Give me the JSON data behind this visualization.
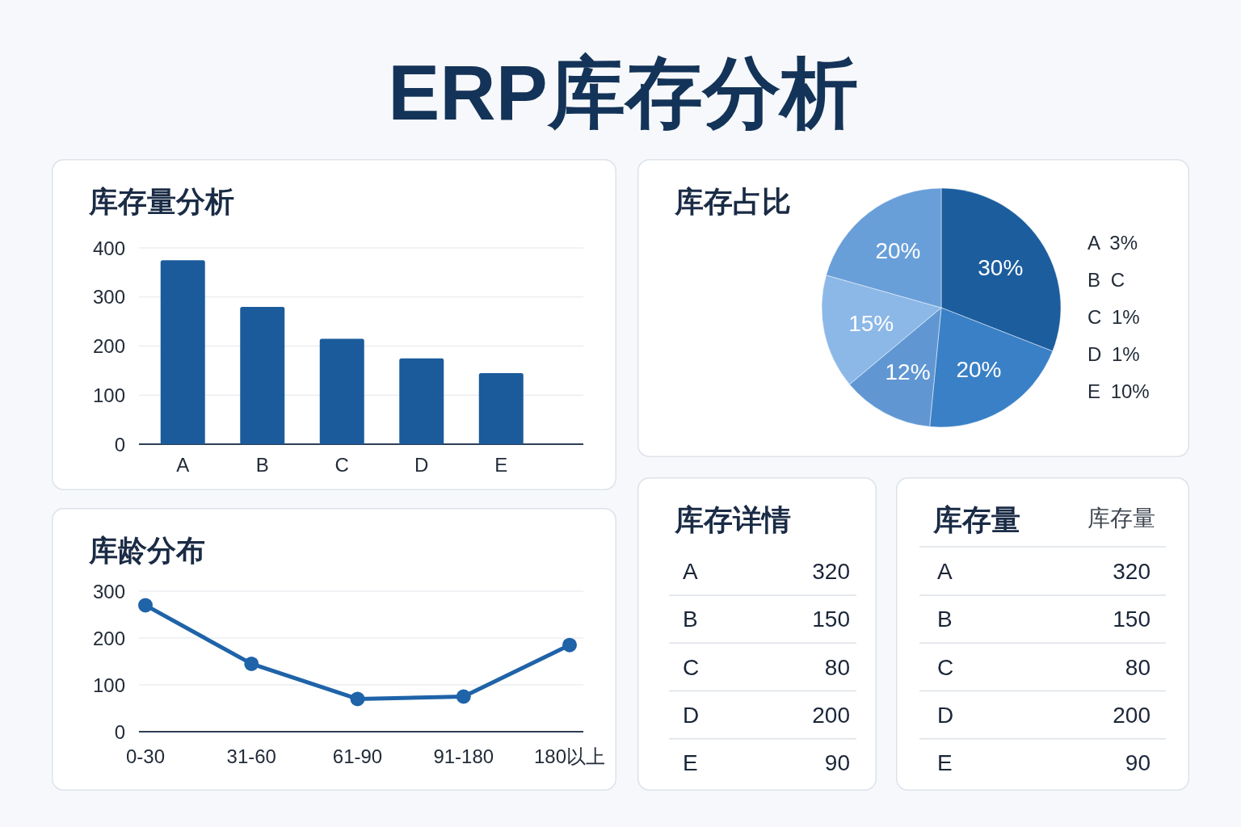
{
  "chart_data": [
    {
      "type": "other",
      "title": "ERP库存分析"
    },
    {
      "type": "bar",
      "title": "库存量分析",
      "categories": [
        "A",
        "B",
        "C",
        "D",
        "E"
      ],
      "values": [
        375,
        280,
        215,
        175,
        145
      ],
      "color": "#1b5b9c",
      "ylim": [
        0,
        400
      ],
      "yticks": [
        0,
        100,
        200,
        300,
        400
      ],
      "grid": "y"
    },
    {
      "type": "pie",
      "title": "库存占比",
      "categories": [
        null,
        null,
        null,
        null,
        null
      ],
      "values": [
        30,
        20,
        12,
        15,
        20
      ],
      "colors": [
        "#1c5d9e",
        "#3a80c6",
        "#6097d3",
        "#8cb8e7",
        "#699fd9"
      ],
      "value_labels": [
        "30%",
        "20%",
        "12%",
        "15%",
        "20%"
      ],
      "annotations": [
        "A 3%",
        "B C",
        "C 1%",
        "D 1%",
        "E 10%"
      ]
    },
    {
      "type": "line",
      "title": "库龄分布",
      "categories": [
        "0-30",
        "31-60",
        "61-90",
        "91-180",
        "180以上"
      ],
      "values": [
        270,
        145,
        70,
        75,
        185
      ],
      "color": "#1f63a8",
      "ylim": [
        0,
        300
      ],
      "yticks": [
        0,
        100,
        200,
        300
      ],
      "grid": "y",
      "marker": "circle",
      "line_style": "solid"
    },
    {
      "type": "other",
      "title": "库存详情",
      "categories": [
        "A",
        "B",
        "C",
        "D",
        "E"
      ],
      "values": [
        320,
        150,
        80,
        200,
        90
      ],
      "data_labels": true
    },
    {
      "type": "other",
      "title": "库存量",
      "ylabel": "库存量",
      "categories": [
        "A",
        "B",
        "C",
        "D",
        "E"
      ],
      "values": [
        320,
        150,
        80,
        200,
        90
      ],
      "data_labels": true
    }
  ]
}
